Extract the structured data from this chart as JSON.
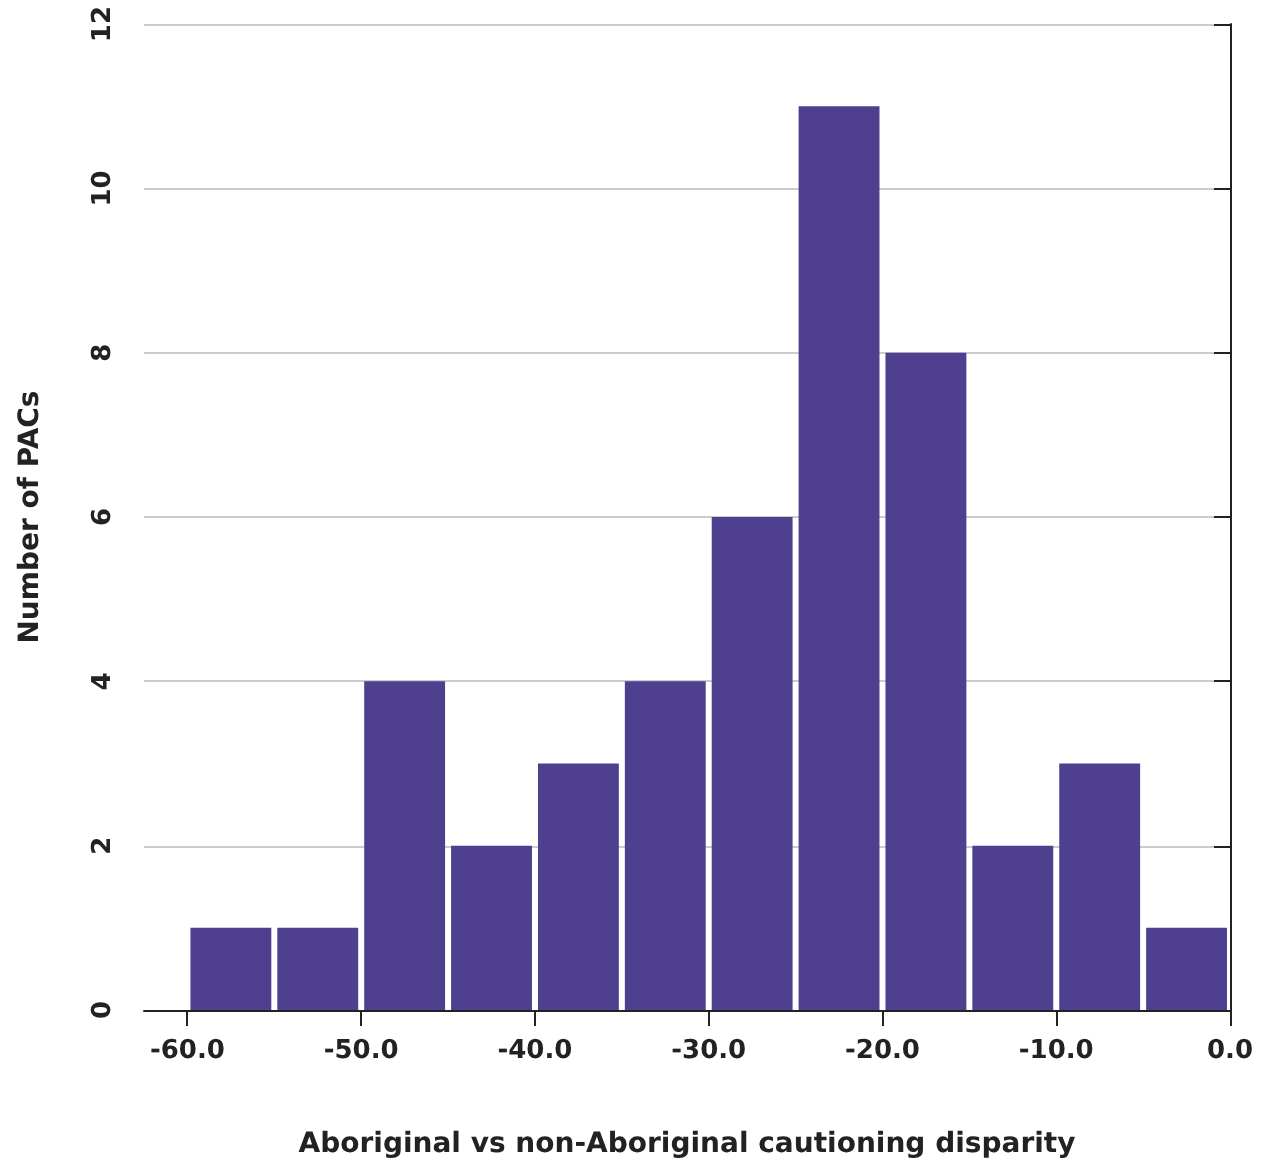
{
  "chart_data": {
    "type": "histogram",
    "xlabel": "Aboriginal vs non-Aboriginal cautioning disparity",
    "ylabel": "Number of PACs",
    "bins": [
      -60,
      -55,
      -50,
      -45,
      -40,
      -35,
      -30,
      -25,
      -20,
      -15,
      -10,
      -5,
      0
    ],
    "values": [
      1,
      1,
      4,
      2,
      3,
      4,
      6,
      11,
      8,
      2,
      3,
      1
    ],
    "color": "#4f3f8f",
    "xlim": [
      -62.5,
      0
    ],
    "xticks": [
      {
        "value": -60,
        "label": "-60.0"
      },
      {
        "value": -50,
        "label": "-50.0"
      },
      {
        "value": -40,
        "label": "-40.0"
      },
      {
        "value": -30,
        "label": "-30.0"
      },
      {
        "value": -20,
        "label": "-20.0"
      },
      {
        "value": -10,
        "label": "-10.0"
      },
      {
        "value": 0,
        "label": "0.0"
      }
    ],
    "ylim": [
      0,
      12
    ],
    "yticks": [
      0,
      2,
      4,
      6,
      8,
      10,
      12
    ],
    "grid": "y"
  }
}
